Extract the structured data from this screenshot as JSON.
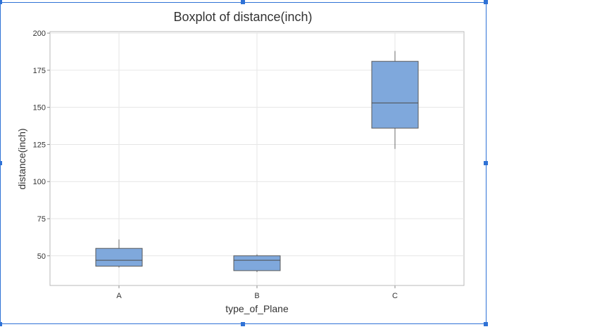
{
  "chart_data": {
    "type": "boxplot",
    "title": "Boxplot of distance(inch)",
    "xlabel": "type_of_Plane",
    "ylabel": "distance(inch)",
    "categories": [
      "A",
      "B",
      "C"
    ],
    "ylim": [
      30,
      201
    ],
    "yticks": [
      50,
      75,
      100,
      125,
      150,
      175,
      200
    ],
    "grid": true,
    "legend": "none",
    "box_color": "#7fa8dc",
    "boxes": [
      {
        "category": "A",
        "whisker_low": 42,
        "q1": 43,
        "median": 47,
        "q3": 55,
        "whisker_high": 61
      },
      {
        "category": "B",
        "whisker_low": 39,
        "q1": 40,
        "median": 47,
        "q3": 50,
        "whisker_high": 51
      },
      {
        "category": "C",
        "whisker_low": 122,
        "q1": 136,
        "median": 153,
        "q3": 181,
        "whisker_high": 188
      }
    ]
  }
}
